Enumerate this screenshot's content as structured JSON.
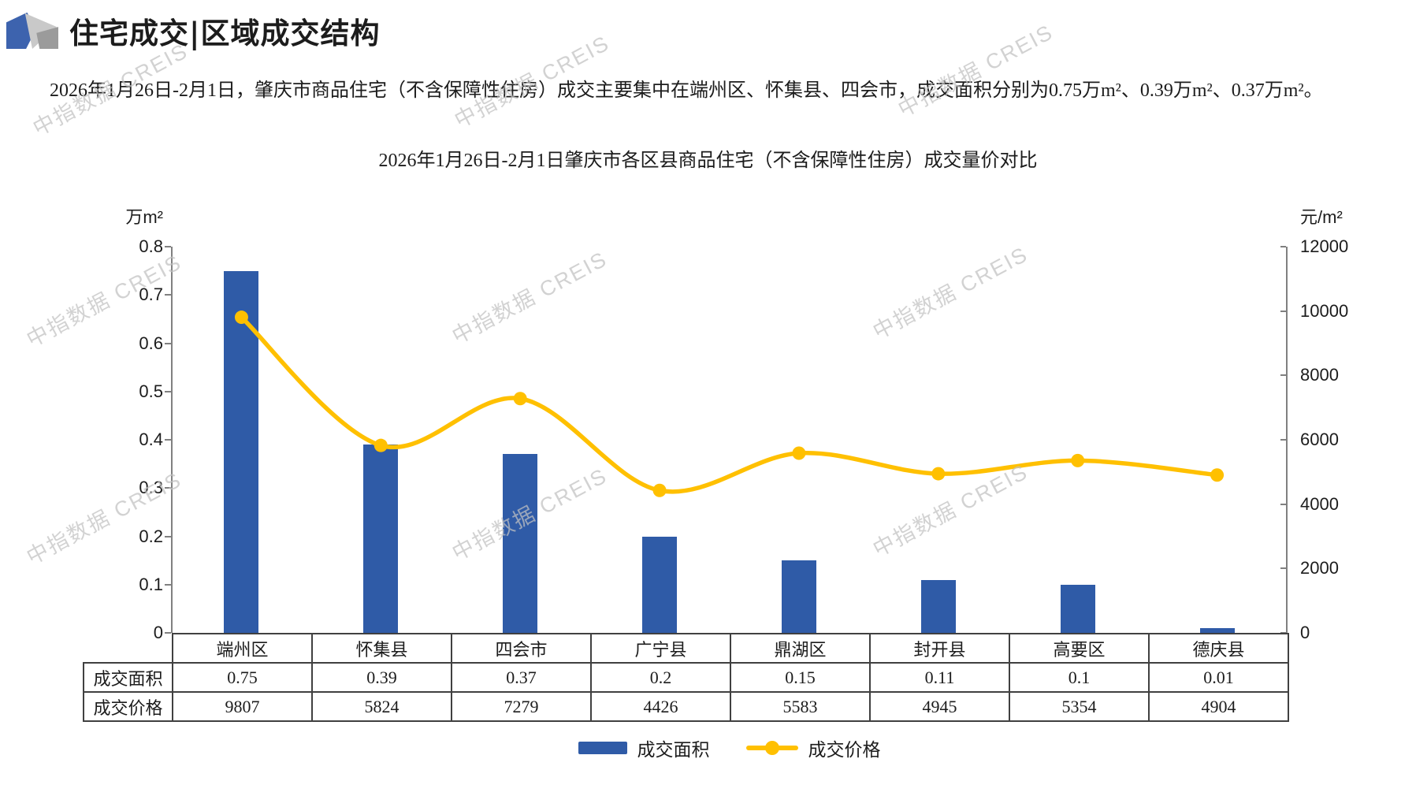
{
  "header": {
    "title": "住宅成交|区域成交结构"
  },
  "summary": "2026年1月26日-2月1日，肇庆市商品住宅（不含保障性住房）成交主要集中在端州区、怀集县、四会市，成交面积分别为0.75万m²、0.39万m²、0.37万m²。",
  "watermark": {
    "text": "中指数据 CREIS"
  },
  "chart_data": {
    "type": "bar",
    "subtype": "bar-line-combo",
    "title": "2026年1月26日-2月1日肇庆市各区县商品住宅（不含保障性住房）成交量价对比",
    "categories": [
      "端州区",
      "怀集县",
      "四会市",
      "广宁县",
      "鼎湖区",
      "封开县",
      "高要区",
      "德庆县"
    ],
    "series": [
      {
        "name": "成交面积",
        "type": "bar",
        "axis": "left",
        "color": "#2F5BA7",
        "values": [
          0.75,
          0.39,
          0.37,
          0.2,
          0.15,
          0.11,
          0.1,
          0.01
        ]
      },
      {
        "name": "成交价格",
        "type": "line",
        "axis": "right",
        "color": "#FFC000",
        "values": [
          9807,
          5824,
          7279,
          4426,
          5583,
          4945,
          5354,
          4904
        ]
      }
    ],
    "left_axis": {
      "label": "万m²",
      "min": 0,
      "max": 0.8,
      "ticks": [
        "0.8",
        "0.7",
        "0.6",
        "0.5",
        "0.4",
        "0.3",
        "0.2",
        "0.1",
        "0"
      ]
    },
    "right_axis": {
      "label": "元/m²",
      "min": 0,
      "max": 12000,
      "ticks": [
        "12000",
        "10000",
        "8000",
        "6000",
        "4000",
        "2000",
        "0"
      ]
    },
    "legend": {
      "position": "bottom",
      "entries": [
        "成交面积",
        "成交价格"
      ]
    },
    "grid": false
  },
  "table": {
    "column_headers": [
      "端州区",
      "怀集县",
      "四会市",
      "广宁县",
      "鼎湖区",
      "封开县",
      "高要区",
      "德庆县"
    ],
    "rows": [
      {
        "label": "成交面积",
        "values": [
          "0.75",
          "0.39",
          "0.37",
          "0.2",
          "0.15",
          "0.11",
          "0.1",
          "0.01"
        ]
      },
      {
        "label": "成交价格",
        "values": [
          "9807",
          "5824",
          "7279",
          "4426",
          "5583",
          "4945",
          "5354",
          "4904"
        ]
      }
    ]
  }
}
